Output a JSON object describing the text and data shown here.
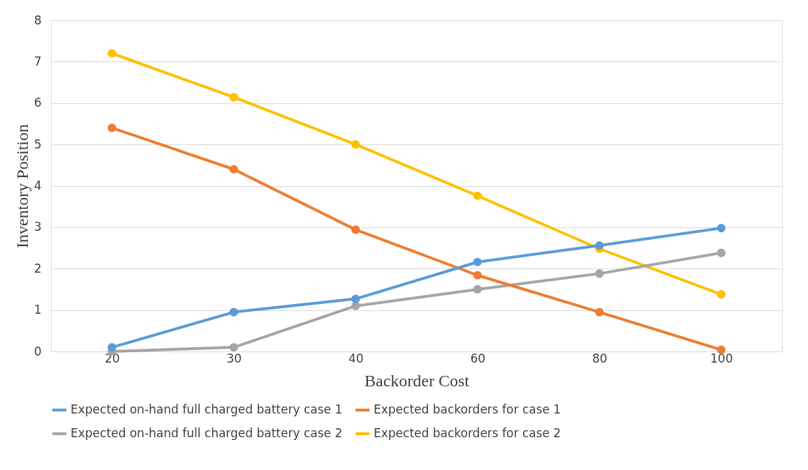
{
  "chart_data": {
    "type": "line",
    "xlabel": "Backorder Cost",
    "ylabel": "Inventory Position",
    "categories": [
      "20",
      "30",
      "40",
      "60",
      "80",
      "100"
    ],
    "series": [
      {
        "name": "Expected on-hand full charged battery case 1",
        "color": "#5b9bd5",
        "values": [
          0.1,
          0.95,
          1.27,
          2.16,
          2.56,
          2.98
        ]
      },
      {
        "name": "Expected backorders for case 1",
        "color": "#ed7d31",
        "values": [
          5.4,
          4.4,
          2.94,
          1.84,
          0.95,
          0.04
        ]
      },
      {
        "name": "Expected on-hand full charged battery case 2",
        "color": "#a5a5a5",
        "values": [
          0.0,
          0.1,
          1.1,
          1.5,
          1.88,
          2.38
        ]
      },
      {
        "name": "Expected backorders for case 2",
        "color": "#ffc000",
        "values": [
          7.2,
          6.14,
          5.0,
          3.76,
          2.48,
          1.38
        ]
      }
    ],
    "ylim": [
      0,
      8
    ],
    "yticks": [
      0,
      1,
      2,
      3,
      4,
      5,
      6,
      7,
      8
    ],
    "grid": "y",
    "legend": "bottom",
    "marker": "circle",
    "line_style": "solid"
  }
}
